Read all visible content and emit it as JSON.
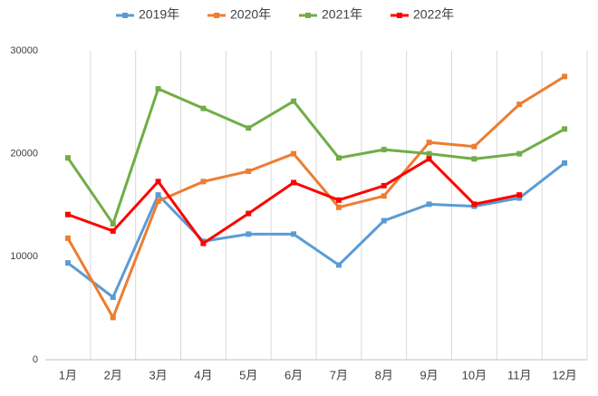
{
  "chart_data": {
    "type": "line",
    "categories": [
      "1月",
      "2月",
      "3月",
      "4月",
      "5月",
      "6月",
      "7月",
      "8月",
      "9月",
      "10月",
      "11月",
      "12月"
    ],
    "series": [
      {
        "name": "2019年",
        "color": "#5b9bd5",
        "values": [
          9400,
          6070,
          16000,
          11500,
          12200,
          12200,
          9200,
          13500,
          15100,
          14900,
          15700,
          19100
        ]
      },
      {
        "name": "2020年",
        "color": "#ed7d31",
        "values": [
          11800,
          4100,
          15400,
          17300,
          18300,
          20000,
          14800,
          15900,
          21100,
          20700,
          24800,
          27500
        ]
      },
      {
        "name": "2021年",
        "color": "#70ad47",
        "values": [
          19600,
          13200,
          26300,
          24400,
          22500,
          25100,
          19600,
          20400,
          20000,
          19500,
          20000,
          22400
        ]
      },
      {
        "name": "2022年",
        "color": "#ff0000",
        "values": [
          14100,
          12500,
          17300,
          11300,
          14200,
          17200,
          15500,
          16900,
          19500,
          15100,
          16000,
          null
        ]
      }
    ],
    "ylim": [
      0,
      30000
    ],
    "yticks": [
      0,
      10000,
      20000,
      30000
    ],
    "grid": true,
    "legend": "top"
  }
}
